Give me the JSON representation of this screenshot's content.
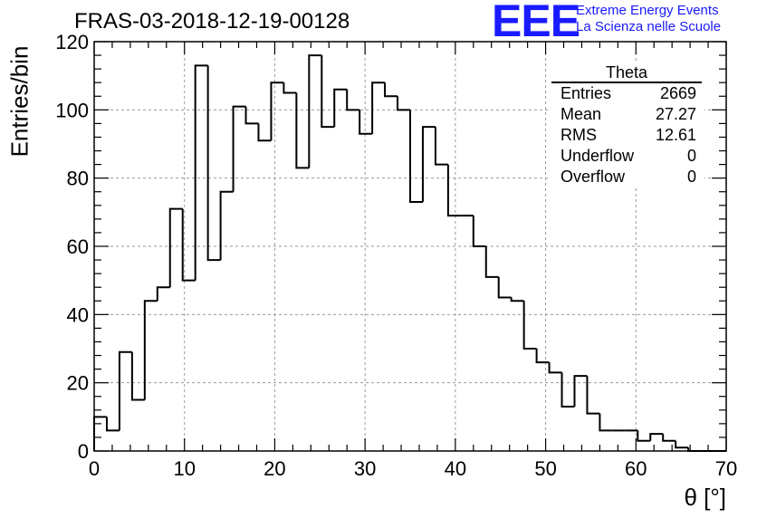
{
  "header": {
    "title": "FRAS-03-2018-12-19-00128",
    "logo": "EEE",
    "org_line1": "Extreme Energy Events",
    "org_line2": "La Scienza nelle Scuole"
  },
  "stats": {
    "title": "Theta",
    "rows": [
      {
        "label": "Entries",
        "value": "2669"
      },
      {
        "label": "Mean",
        "value": "27.27"
      },
      {
        "label": "RMS",
        "value": "12.61"
      },
      {
        "label": "Underflow",
        "value": "0"
      },
      {
        "label": "Overflow",
        "value": "0"
      }
    ]
  },
  "colors": {
    "line": "#000000",
    "logo": "#1a1aff",
    "grid": "#9a9a9a"
  },
  "chart_data": {
    "type": "bar",
    "style": "step-histogram",
    "title": "FRAS-03-2018-12-19-00128",
    "xlabel": "θ [°]",
    "ylabel": "Entries/bin",
    "xlim": [
      0,
      70
    ],
    "ylim": [
      0,
      120
    ],
    "grid": true,
    "bin_width": 1.4,
    "x_ticks": [
      "0",
      "10",
      "20",
      "30",
      "40",
      "50",
      "60",
      "70"
    ],
    "y_ticks": [
      "0",
      "20",
      "40",
      "60",
      "80",
      "100",
      "120"
    ],
    "values": [
      10,
      6,
      29,
      15,
      44,
      48,
      71,
      50,
      113,
      56,
      76,
      101,
      96,
      91,
      108,
      105,
      83,
      116,
      95,
      106,
      100,
      93,
      108,
      104,
      100,
      73,
      95,
      84,
      69,
      69,
      60,
      51,
      45,
      44,
      30,
      26,
      23,
      13,
      22,
      11,
      6,
      6,
      6,
      3,
      5,
      3,
      1,
      0,
      0,
      0
    ]
  }
}
